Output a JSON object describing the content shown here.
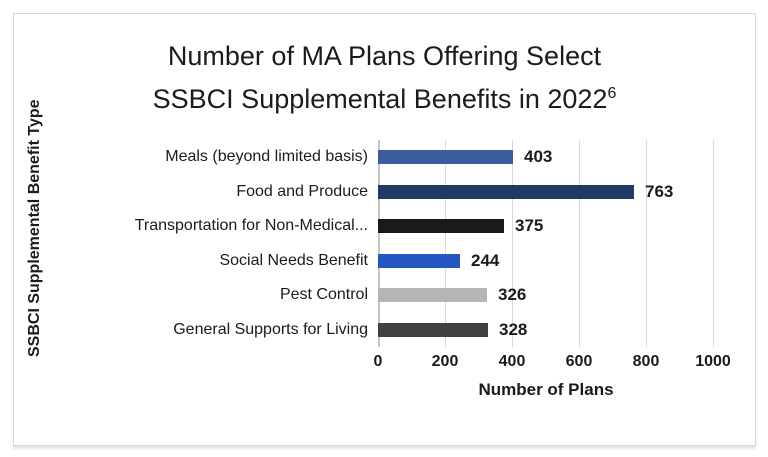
{
  "page": {
    "background_color": "#ffffff",
    "border_color": "#d9d9d9"
  },
  "chart_data": {
    "type": "bar",
    "orientation": "horizontal",
    "title_line1": "Number of MA Plans Offering Select",
    "title_line2": "SSBCI Supplemental Benefits in 2022",
    "title_superscript": "6",
    "categories": [
      "Meals (beyond limited basis)",
      "Food and Produce",
      "Transportation for Non-Medical...",
      "Social Needs Benefit",
      "Pest Control",
      "General Supports for Living"
    ],
    "values": [
      403,
      763,
      375,
      244,
      326,
      328
    ],
    "bar_colors": [
      "#3d5c9e",
      "#203a63",
      "#1a1a1a",
      "#2357c4",
      "#b5b5b5",
      "#414141"
    ],
    "value_labels": [
      "403",
      "763",
      "375",
      "244",
      "326",
      "328"
    ],
    "xlabel": "Number of Plans",
    "ylabel": "SSBCI Supplemental Benefit Type",
    "x_ticks": [
      0,
      200,
      400,
      600,
      800,
      1000
    ],
    "x_tick_labels": [
      "0",
      "200",
      "400",
      "600",
      "800",
      "1000"
    ],
    "xlim": [
      0,
      1000
    ],
    "grid": "vertical-only",
    "gridline_color": "#d9d9d9",
    "legend": "none",
    "value_labels_shown": true
  }
}
